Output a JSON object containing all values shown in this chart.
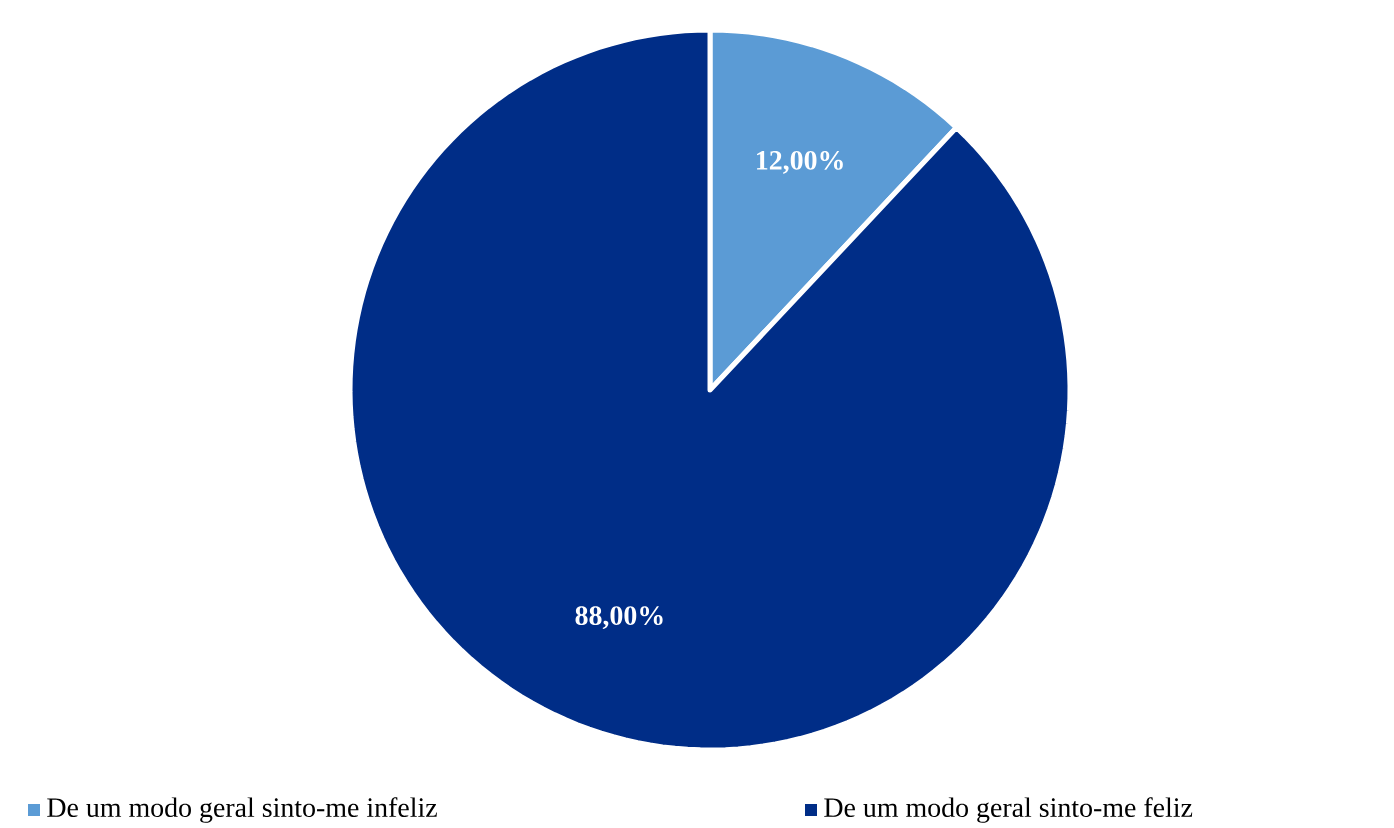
{
  "chart_data": {
    "type": "pie",
    "categories": [
      "De um modo geral sinto-me infeliz",
      "De um modo geral sinto-me feliz"
    ],
    "values": [
      12,
      88
    ],
    "colors": [
      "#5b9bd5",
      "#002d87"
    ],
    "value_labels": [
      "12,00%",
      "88,00%"
    ],
    "legend": "bottom"
  }
}
